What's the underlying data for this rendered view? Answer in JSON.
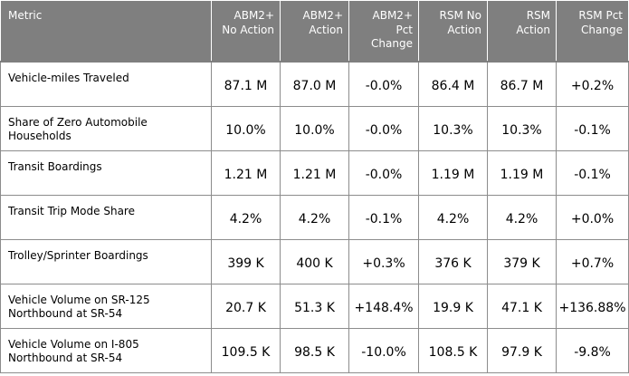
{
  "table": {
    "headers": [
      "Metric",
      "ABM2+ No Action",
      "ABM2+ Action",
      "ABM2+ Pct Change",
      "RSM No Action",
      "RSM Action",
      "RSM Pct Change"
    ],
    "rows": [
      {
        "metric": "Vehicle-miles Traveled",
        "values": [
          "87.1 M",
          "87.0 M",
          "-0.0%",
          "86.4 M",
          "86.7 M",
          "+0.2%"
        ]
      },
      {
        "metric": "Share of Zero Automobile Households",
        "values": [
          "10.0%",
          "10.0%",
          "-0.0%",
          "10.3%",
          "10.3%",
          "-0.1%"
        ]
      },
      {
        "metric": "Transit Boardings",
        "values": [
          "1.21 M",
          "1.21 M",
          "-0.0%",
          "1.19 M",
          "1.19 M",
          "-0.1%"
        ]
      },
      {
        "metric": "Transit Trip Mode Share",
        "values": [
          "4.2%",
          "4.2%",
          "-0.1%",
          "4.2%",
          "4.2%",
          "+0.0%"
        ]
      },
      {
        "metric": "Trolley/Sprinter Boardings",
        "values": [
          "399 K",
          "400 K",
          "+0.3%",
          "376 K",
          "379 K",
          "+0.7%"
        ]
      },
      {
        "metric": "Vehicle Volume on SR-125 Northbound  at SR-54",
        "values": [
          "20.7 K",
          "51.3 K",
          "+148.4%",
          "19.9 K",
          "47.1 K",
          "+136.88%"
        ]
      },
      {
        "metric": "Vehicle Volume on I-805 Northbound  at SR-54",
        "values": [
          "109.5 K",
          "98.5 K",
          "-10.0%",
          "108.5 K",
          "97.9 K",
          "-9.8%"
        ]
      }
    ]
  },
  "colors": {
    "header_bg": "#7f7f7f",
    "header_text": "#ffffff",
    "grid": "#8c8c8c"
  }
}
